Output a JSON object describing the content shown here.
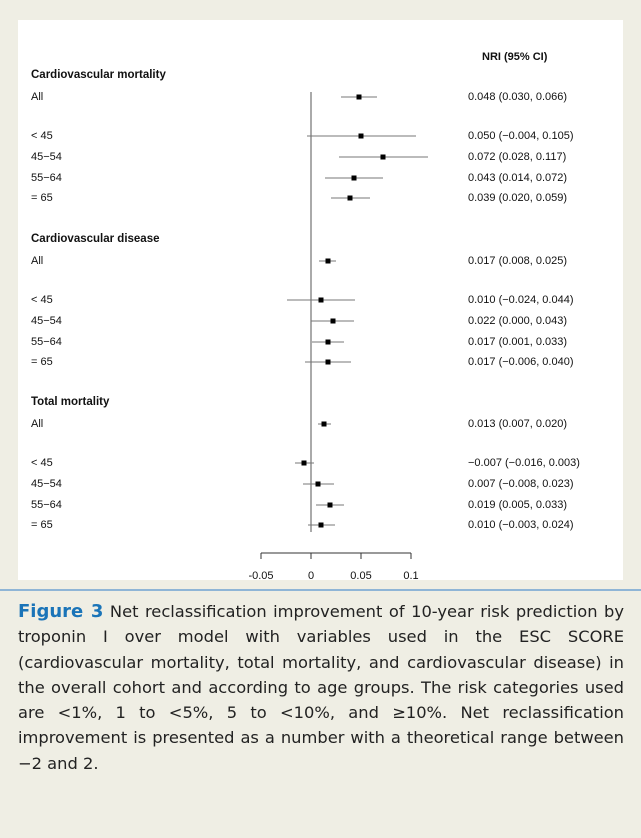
{
  "chart_data": {
    "type": "forest",
    "column_header": "NRI (95% CI)",
    "xlim": [
      -0.05,
      0.1
    ],
    "xticks": [
      -0.05,
      0,
      0.05,
      0.1
    ],
    "color": "#000000",
    "groups": [
      {
        "title": "Cardiovascular mortality",
        "labels": [
          "All",
          "< 45",
          "45−54",
          "55−64",
          "= 65"
        ],
        "values": [
          0.048,
          0.05,
          0.072,
          0.043,
          0.039
        ],
        "lower": [
          0.03,
          -0.004,
          0.028,
          0.014,
          0.02
        ],
        "upper": [
          0.066,
          0.105,
          0.117,
          0.072,
          0.059
        ],
        "value_labels": [
          "0.048 (0.030, 0.066)",
          "0.050 (−0.004, 0.105)",
          "0.072 (0.028, 0.117)",
          "0.043 (0.014, 0.072)",
          "0.039 (0.020, 0.059)"
        ]
      },
      {
        "title": "Cardiovascular disease",
        "labels": [
          "All",
          "< 45",
          "45−54",
          "55−64",
          "= 65"
        ],
        "values": [
          0.017,
          0.01,
          0.022,
          0.017,
          0.017
        ],
        "lower": [
          0.008,
          -0.024,
          0.0,
          0.001,
          -0.006
        ],
        "upper": [
          0.025,
          0.044,
          0.043,
          0.033,
          0.04
        ],
        "value_labels": [
          "0.017 (0.008, 0.025)",
          "0.010 (−0.024, 0.044)",
          "0.022 (0.000, 0.043)",
          "0.017 (0.001, 0.033)",
          "0.017 (−0.006, 0.040)"
        ]
      },
      {
        "title": "Total mortality",
        "labels": [
          "All",
          "< 45",
          "45−54",
          "55−64",
          "= 65"
        ],
        "values": [
          0.013,
          -0.007,
          0.007,
          0.019,
          0.01
        ],
        "lower": [
          0.007,
          -0.016,
          -0.008,
          0.005,
          -0.003
        ],
        "upper": [
          0.02,
          0.003,
          0.023,
          0.033,
          0.024
        ],
        "value_labels": [
          "0.013 (0.007, 0.020)",
          "−0.007 (−0.016, 0.003)",
          "0.007 (−0.008, 0.023)",
          "0.019 (0.005, 0.033)",
          "0.010 (−0.003, 0.024)"
        ]
      }
    ]
  },
  "caption": {
    "label": "Figure 3",
    "text": "Net reclassification improvement of 10-year risk prediction by troponin I over model with variables used in the ESC SCORE (cardiovascular mortality, total mortality, and cardiovascular disease) in the overall cohort and according to age groups. The risk categories used are <1%, 1 to <5%, 5 to <10%, and ≥10%. Net reclassification improvement is presented as a number with a theoretical range between −2 and 2."
  }
}
